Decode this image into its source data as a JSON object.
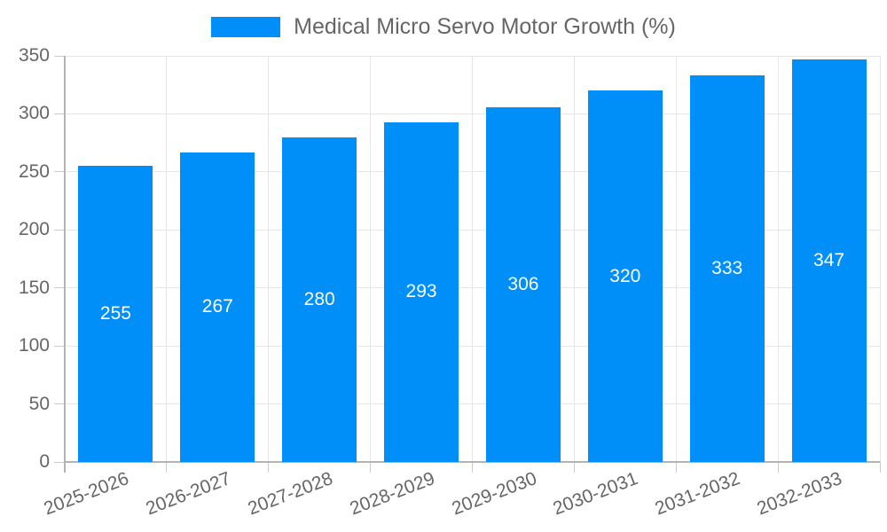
{
  "legend": {
    "label": "Medical Micro Servo Motor Growth (%)"
  },
  "colors": {
    "bar": "#008ff9",
    "bar_label": "#ffffff",
    "tick_label": "#666666",
    "legend_text": "#666666",
    "grid": "#e6e6e6",
    "tick_mark": "#cccccc",
    "axis": "#b3b3b3",
    "background": "#ffffff"
  },
  "chart_data": {
    "type": "bar",
    "title": "Medical Micro Servo Motor Growth (%)",
    "categories": [
      "2025-2026",
      "2026-2027",
      "2027-2028",
      "2028-2029",
      "2029-2030",
      "2030-2031",
      "2031-2032",
      "2032-2033"
    ],
    "values": [
      255,
      267,
      280,
      293,
      306,
      320,
      333,
      347
    ],
    "bar_labels": [
      255,
      267,
      280,
      293,
      306,
      320,
      333,
      347
    ],
    "xlabel": "",
    "ylabel": "",
    "ylim": [
      0,
      350
    ],
    "yticks": [
      0,
      50,
      100,
      150,
      200,
      250,
      300,
      350
    ],
    "grid": true,
    "legend_position": "top-center",
    "bar_label_position": "inside-middle",
    "xtick_rotation_deg": -21
  }
}
